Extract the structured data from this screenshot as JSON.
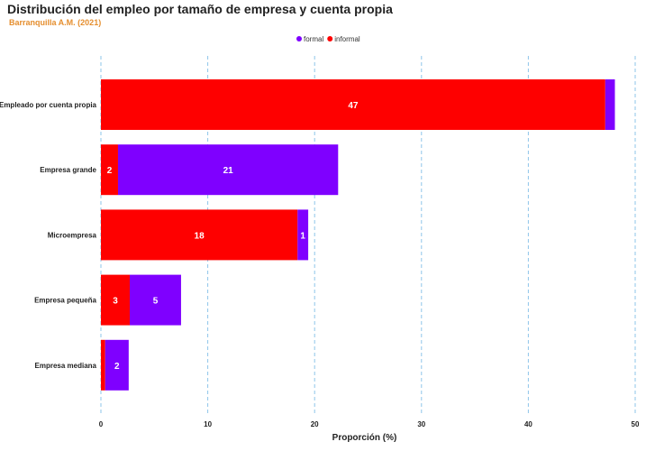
{
  "header": {
    "title": "Distribución del empleo por tamaño de empresa y cuenta propia",
    "subtitle": "Barranquilla A.M. (2021)",
    "subtitle_color": "#e58e2e"
  },
  "chart_data": {
    "type": "bar",
    "orientation": "horizontal",
    "stacked": true,
    "categories": [
      "Empleado por cuenta propia",
      "Empresa grande",
      "Microempresa",
      "Empresa pequeña",
      "Empresa mediana"
    ],
    "series": [
      {
        "name": "informal",
        "color": "#fe0000",
        "values": [
          47.2,
          1.6,
          18.4,
          2.7,
          0.4
        ],
        "labels": [
          "47",
          "2",
          "18",
          "3",
          ""
        ]
      },
      {
        "name": "formal",
        "color": "#7f00ff",
        "values": [
          0.9,
          20.6,
          1.0,
          4.8,
          2.2
        ],
        "labels": [
          "",
          "21",
          "1",
          "5",
          "2"
        ]
      }
    ],
    "legend": {
      "placement": "top-center",
      "order": [
        "formal",
        "informal"
      ]
    },
    "xlabel": "Proporción (%)",
    "ylabel": "",
    "xlim": [
      0,
      50
    ],
    "xticks": [
      0,
      10,
      20,
      30,
      40,
      50
    ],
    "grid": {
      "vertical": true,
      "style": "dashed",
      "color": "#8ec5ea"
    }
  }
}
